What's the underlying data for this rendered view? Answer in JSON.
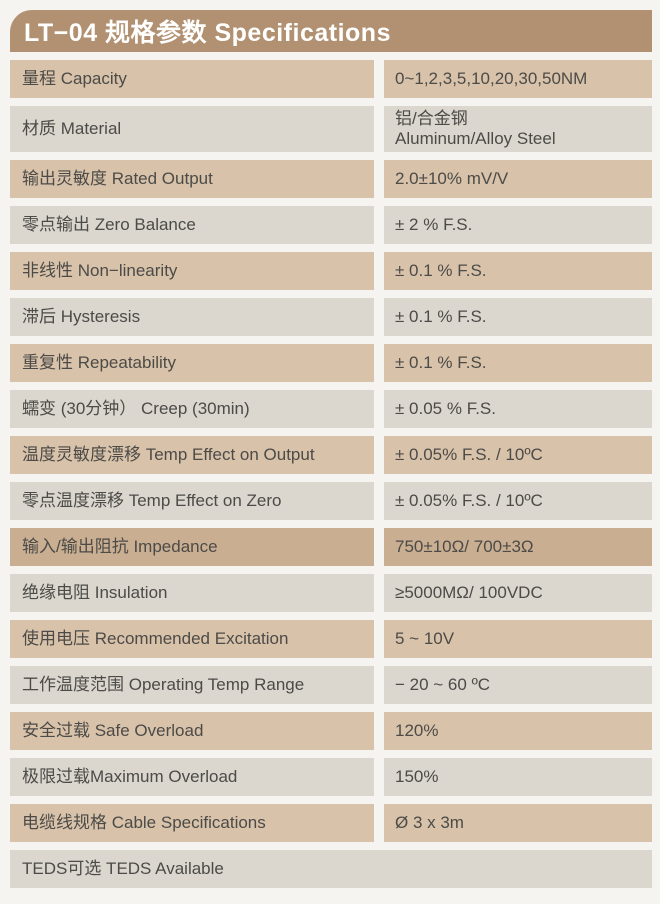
{
  "header": {
    "title": "LT−04 规格参数 Specifications"
  },
  "colors": {
    "page_bg": "#f6f4f0",
    "header_bg": "#b19171",
    "header_text": "#ffffff",
    "row_tan": "#d8c2aa",
    "row_gray": "#dbd6ce",
    "row_highlight": "#c9ae92",
    "text": "#4c4b47"
  },
  "rows": [
    {
      "label": "量程 Capacity",
      "value": "0~1,2,3,5,10,20,30,50NM"
    },
    {
      "label": "材质 Material",
      "value": "铝/合金钢\nAluminum/Alloy Steel"
    },
    {
      "label": "输出灵敏度 Rated Output",
      "value": "2.0±10% mV/V"
    },
    {
      "label": "零点输出  Zero Balance",
      "value": "± 2 % F.S."
    },
    {
      "label": "非线性 Non−linearity",
      "value": "± 0.1 % F.S."
    },
    {
      "label": "滞后 Hysteresis",
      "value": "± 0.1 % F.S."
    },
    {
      "label": "重复性 Repeatability",
      "value": "± 0.1 % F.S."
    },
    {
      "label": "蠕变 (30分钟） Creep (30min)",
      "value": "± 0.05 % F.S."
    },
    {
      "label": "温度灵敏度漂移 Temp Effect on Output",
      "value": "± 0.05% F.S. / 10ºC"
    },
    {
      "label": "零点温度漂移 Temp Effect on Zero",
      "value": "± 0.05% F.S. / 10ºC"
    },
    {
      "label": "输入/输出阻抗 Impedance",
      "value": "750±10Ω/ 700±3Ω"
    },
    {
      "label": "绝缘电阻  Insulation",
      "value": "≥5000MΩ/ 100VDC"
    },
    {
      "label": "使用电压 Recommended Excitation",
      "value": "5 ~ 10V"
    },
    {
      "label": "工作温度范围 Operating Temp  Range",
      "value": "− 20 ~ 60 ºC"
    },
    {
      "label": "安全过载 Safe Overload",
      "value": "120%"
    },
    {
      "label": "极限过载Maximum Overload",
      "value": "150%"
    },
    {
      "label": "电缆线规格 Cable Specifications",
      "value": "Ø 3 x 3m"
    },
    {
      "label": "TEDS可选 TEDS Available",
      "value": ""
    }
  ]
}
